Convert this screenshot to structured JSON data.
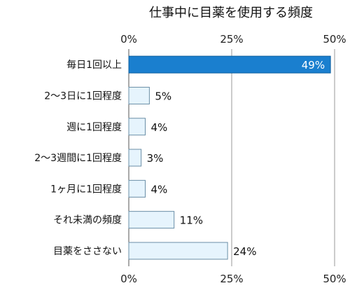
{
  "chart_data": {
    "type": "bar",
    "orientation": "horizontal",
    "title": "仕事中に目薬を使用する頻度",
    "categories": [
      "毎日1回以上",
      "2～3日に1回程度",
      "週に1回程度",
      "2～3週間に1回程度",
      "1ヶ月に1回程度",
      "それ未満の頻度",
      "目薬をささない"
    ],
    "values": [
      49,
      5,
      4,
      3,
      4,
      11,
      24
    ],
    "value_labels": [
      "49%",
      "5%",
      "4%",
      "3%",
      "4%",
      "11%",
      "24%"
    ],
    "xlim": [
      0,
      50
    ],
    "x_ticks": [
      0,
      25,
      50
    ],
    "x_tick_labels": [
      "0%",
      "25%",
      "50%"
    ],
    "x_tick_labels_bottom": [
      "0%",
      "25%",
      "50%"
    ],
    "grid": true,
    "highlight_index": 0,
    "colors": {
      "highlight_fill": "#1a7fcf",
      "highlight_stroke": "#0e5f9e",
      "bar_fill": "#e6f4fd",
      "bar_stroke": "#6a8ea6",
      "grid": "#999999",
      "axis": "#555555"
    }
  }
}
